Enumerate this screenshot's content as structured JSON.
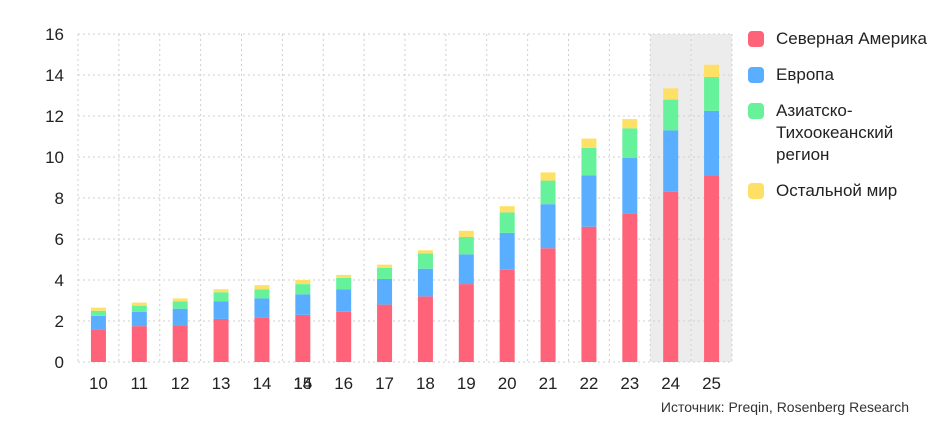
{
  "chart_data": {
    "type": "bar",
    "stacked": true,
    "categories": [
      "10",
      "11",
      "12",
      "13",
      "14",
      "15",
      "16",
      "17",
      "18",
      "19",
      "20",
      "21",
      "22",
      "23",
      "24",
      "25"
    ],
    "overlay_tick_label": "14",
    "ylim": [
      0,
      16
    ],
    "yticks": [
      0,
      2,
      4,
      6,
      8,
      10,
      12,
      14,
      16
    ],
    "grid": true,
    "highlighted_categories": [
      "24",
      "25"
    ],
    "series": [
      {
        "name": "Северная Америка",
        "color": "#ff6379",
        "values": [
          1.6,
          1.75,
          1.8,
          2.1,
          2.15,
          2.3,
          2.45,
          2.8,
          3.2,
          3.8,
          4.5,
          5.55,
          6.6,
          7.25,
          8.3,
          9.1
        ]
      },
      {
        "name": "Европа",
        "color": "#5aaeff",
        "values": [
          0.65,
          0.7,
          0.8,
          0.85,
          0.95,
          1.0,
          1.1,
          1.25,
          1.35,
          1.45,
          1.8,
          2.15,
          2.5,
          2.7,
          3.0,
          3.15
        ]
      },
      {
        "name": "Азиатско-\nТихоокеанский\nрегион",
        "color": "#66f29a",
        "values": [
          0.25,
          0.3,
          0.35,
          0.45,
          0.45,
          0.5,
          0.55,
          0.55,
          0.75,
          0.85,
          1.0,
          1.15,
          1.35,
          1.45,
          1.5,
          1.65
        ]
      },
      {
        "name": "Остальной мир",
        "color": "#ffe066",
        "values": [
          0.15,
          0.15,
          0.15,
          0.15,
          0.2,
          0.2,
          0.15,
          0.15,
          0.15,
          0.3,
          0.3,
          0.4,
          0.45,
          0.45,
          0.55,
          0.6
        ]
      }
    ],
    "legend_position": "right"
  },
  "source": "Источник: Preqin, Rosenberg Research"
}
